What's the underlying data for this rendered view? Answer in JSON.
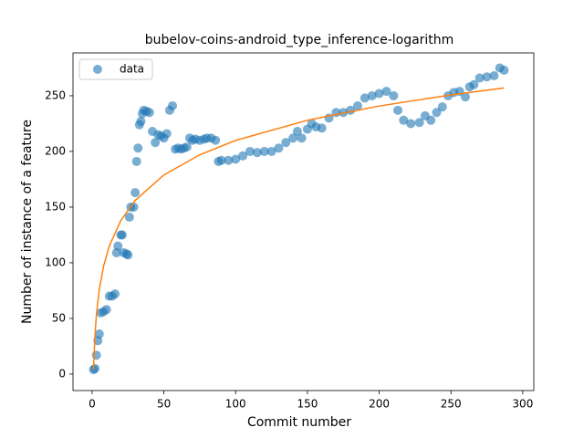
{
  "chart_data": {
    "type": "scatter",
    "title": "bubelov-coins-android_type_inference-logarithm",
    "xlabel": "Commit number",
    "ylabel": "Number of instance of a feature",
    "xlim": [
      -13.3,
      307.7
    ],
    "ylim": [
      -14.8,
      288.5
    ],
    "xticks": [
      0,
      50,
      100,
      150,
      200,
      250,
      300
    ],
    "yticks": [
      0,
      50,
      100,
      150,
      200,
      250
    ],
    "legend": "upper left",
    "series": [
      {
        "name": "data",
        "color": "#1f77b4",
        "style": "markers",
        "x": [
          1,
          2,
          3,
          4,
          5,
          6,
          8,
          10,
          12,
          14,
          16,
          17,
          18,
          20,
          21,
          22,
          24,
          25,
          26,
          27,
          29,
          30,
          31,
          32,
          33,
          34,
          35,
          36,
          38,
          40,
          42,
          44,
          46,
          48,
          50,
          52,
          54,
          56,
          58,
          60,
          62,
          64,
          66,
          68,
          70,
          72,
          75,
          78,
          80,
          83,
          86,
          88,
          90,
          95,
          100,
          105,
          110,
          115,
          120,
          125,
          130,
          135,
          140,
          143,
          146,
          150,
          153,
          156,
          160,
          165,
          170,
          175,
          180,
          185,
          190,
          195,
          200,
          205,
          210,
          213,
          217,
          222,
          228,
          232,
          236,
          240,
          244,
          248,
          252,
          256,
          260,
          263,
          266,
          270,
          275,
          280,
          284,
          287
        ],
        "values": [
          4,
          5,
          17,
          30,
          36,
          55,
          56,
          58,
          70,
          70,
          72,
          109,
          115,
          125,
          125,
          109,
          108,
          107,
          141,
          150,
          150,
          163,
          191,
          203,
          224,
          227,
          234,
          237,
          236,
          235,
          218,
          208,
          215,
          214,
          212,
          216,
          237,
          241,
          202,
          203,
          202,
          203,
          204,
          212,
          210,
          211,
          210,
          211,
          212,
          212,
          210,
          191,
          192,
          192,
          193,
          196,
          200,
          199,
          200,
          200,
          203,
          208,
          212,
          218,
          212,
          220,
          225,
          222,
          221,
          230,
          235,
          235,
          237,
          241,
          248,
          250,
          252,
          254,
          250,
          237,
          228,
          225,
          226,
          232,
          228,
          235,
          240,
          250,
          253,
          254,
          249,
          258,
          260,
          266,
          267,
          268,
          275,
          273
        ]
      },
      {
        "color": "#ff7f0e",
        "style": "line",
        "x": [
          1,
          2,
          3,
          5,
          8,
          12,
          20,
          30,
          50,
          75,
          100,
          150,
          200,
          250,
          287
        ],
        "values": [
          4,
          35.0,
          53.1,
          75.9,
          96.9,
          115.1,
          137.9,
          156.0,
          178.9,
          197.0,
          209.9,
          228.0,
          240.8,
          250.8,
          257.0
        ]
      }
    ]
  }
}
